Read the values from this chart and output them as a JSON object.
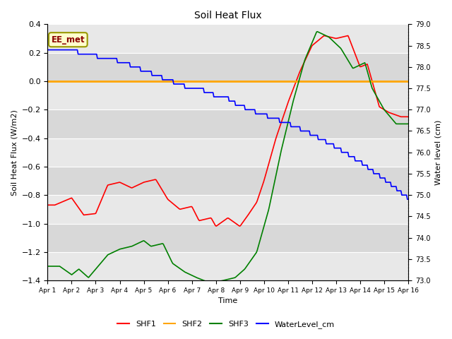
{
  "title": "Soil Heat Flux",
  "xlabel": "Time",
  "ylabel_left": "Soil Heat Flux (W/m2)",
  "ylabel_right": "Water level (cm)",
  "ylim_left": [
    -1.4,
    0.4
  ],
  "ylim_right": [
    73.0,
    79.0
  ],
  "yticks_left": [
    -1.4,
    -1.2,
    -1.0,
    -0.8,
    -0.6,
    -0.4,
    -0.2,
    0.0,
    0.2,
    0.4
  ],
  "yticks_right": [
    73.0,
    73.5,
    74.0,
    74.5,
    75.0,
    75.5,
    76.0,
    76.5,
    77.0,
    77.5,
    78.0,
    78.5,
    79.0
  ],
  "xtick_labels": [
    "Apr 1",
    "Apr 2",
    "Apr 3",
    "Apr 4",
    "Apr 5",
    "Apr 6",
    "Apr 7",
    "Apr 8",
    "Apr 9",
    "Apr 10",
    "Apr 11",
    "Apr 12",
    "Apr 13",
    "Apr 14",
    "Apr 15",
    "Apr 16"
  ],
  "annotation_text": "EE_met",
  "plot_bg_light": "#e8e8e8",
  "plot_bg_dark": "#d8d8d8",
  "grid_color": "white",
  "shf1_color": "red",
  "shf2_color": "orange",
  "shf3_color": "green",
  "water_color": "blue",
  "legend_labels": [
    "SHF1",
    "SHF2",
    "SHF3",
    "WaterLevel_cm"
  ]
}
